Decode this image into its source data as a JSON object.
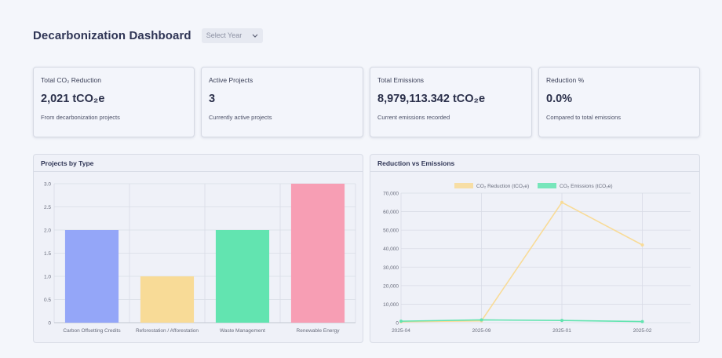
{
  "header": {
    "title": "Decarbonization Dashboard",
    "year_select": {
      "placeholder": "Select Year"
    }
  },
  "cards": [
    {
      "label": "Total CO₂ Reduction",
      "value": "2,021 tCO₂e",
      "sub": "From decarbonization projects"
    },
    {
      "label": "Active Projects",
      "value": "3",
      "sub": "Currently active projects"
    },
    {
      "label": "Total Emissions",
      "value": "8,979,113.342 tCO₂e",
      "sub": "Current emissions recorded"
    },
    {
      "label": "Reduction %",
      "value": "0.0%",
      "sub": "Compared to total emissions"
    }
  ],
  "panels": {
    "projects_title": "Projects by Type",
    "reduction_title": "Reduction vs Emissions"
  },
  "colors": {
    "bars": [
      "#94a6f8",
      "#f8db97",
      "#62e4b0",
      "#f79eb4"
    ],
    "reduction_line": "#f8db97",
    "emissions_line": "#62e4b0"
  },
  "chart_data": [
    {
      "type": "bar",
      "title": "Projects by Type",
      "categories": [
        "Carbon Offsetting Credits",
        "Reforestation / Afforestation",
        "Waste Management",
        "Renewable Energy"
      ],
      "values": [
        2,
        1,
        2,
        3
      ],
      "ylim": [
        0,
        3
      ],
      "yticks": [
        "0",
        "0.5",
        "1.0",
        "1.5",
        "2.0",
        "2.5",
        "3.0"
      ],
      "grid": true
    },
    {
      "type": "line",
      "title": "Reduction vs Emissions",
      "x": [
        "2025-04",
        "2025-09",
        "2025-01",
        "2025-02"
      ],
      "series": [
        {
          "name": "CO₂ Reduction (tCO₂e)",
          "values": [
            500,
            1000,
            65000,
            42000
          ]
        },
        {
          "name": "CO₂ Emissions (tCO₂e)",
          "values": [
            800,
            1500,
            1200,
            600
          ]
        }
      ],
      "ylim": [
        0,
        70000
      ],
      "yticks": [
        "0",
        "10,000",
        "20,000",
        "30,000",
        "40,000",
        "50,000",
        "60,000",
        "70,000"
      ],
      "legend": "top",
      "grid": true
    }
  ]
}
